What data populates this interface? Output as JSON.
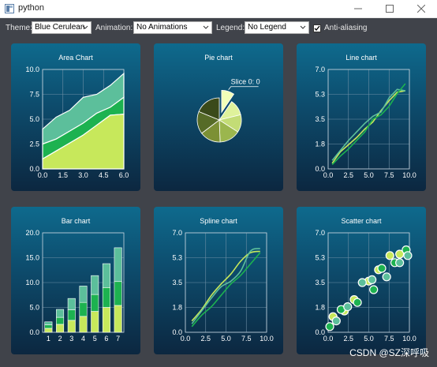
{
  "window": {
    "title": "python"
  },
  "toolbar": {
    "theme_label": "Theme:",
    "theme_value": "Blue Cerulean",
    "animation_label": "Animation:",
    "animation_value": "No Animations",
    "legend_label": "Legend:",
    "legend_value": "No Legend",
    "antialiasing_label": "Anti-aliasing",
    "antialiasing_checked": true
  },
  "watermark": "CSDN @SZ深呼吸",
  "colors": {
    "panel_top": "#0e6a8d",
    "panel_bottom": "#0c2740",
    "series": [
      "#c7e85b",
      "#1db250",
      "#5cbf9b",
      "#009fbf",
      "#ee7392",
      "#6db5d6"
    ]
  },
  "chart_data": [
    {
      "type": "area",
      "title": "Area Chart",
      "xlim": [
        0,
        6
      ],
      "ylim": [
        0,
        10
      ],
      "xticks": [
        "0.0",
        "1.5",
        "3.0",
        "4.5",
        "6.0"
      ],
      "yticks": [
        "0.0",
        "2.5",
        "5.0",
        "7.5",
        "10.0"
      ],
      "x": [
        0,
        1,
        2,
        3,
        4,
        5,
        6
      ],
      "layers": [
        {
          "values": [
            1.0,
            1.8,
            2.6,
            3.4,
            4.4,
            5.4,
            5.5
          ]
        },
        {
          "values": [
            2.5,
            3.0,
            3.8,
            4.6,
            5.6,
            6.2,
            7.2
          ]
        },
        {
          "values": [
            4.0,
            5.2,
            5.9,
            7.2,
            7.5,
            8.4,
            9.6
          ]
        }
      ]
    },
    {
      "type": "pie",
      "title": "Pie chart",
      "slice_label": "Slice 0: 0",
      "slices": [
        {
          "value": 0.8,
          "color": "#f1ffb8",
          "exploded": true
        },
        {
          "value": 1.0,
          "color": "#dff29b"
        },
        {
          "value": 1.1,
          "color": "#c3dc76"
        },
        {
          "value": 1.3,
          "color": "#9bb64e"
        },
        {
          "value": 1.3,
          "color": "#7c9035"
        },
        {
          "value": 1.4,
          "color": "#566b27"
        },
        {
          "value": 1.6,
          "color": "#3a4a1a"
        }
      ]
    },
    {
      "type": "line",
      "title": "Line chart",
      "xlim": [
        0,
        10
      ],
      "ylim": [
        0,
        7
      ],
      "xticks": [
        "0.0",
        "2.5",
        "5.0",
        "7.5",
        "10.0"
      ],
      "yticks": [
        "0.0",
        "1.8",
        "3.5",
        "5.3",
        "7.0"
      ],
      "series": [
        {
          "x": [
            0.5,
            1.5,
            2.5,
            3.5,
            4.5,
            5.5,
            6.5,
            7.5,
            8.5,
            9.5
          ],
          "y": [
            0.4,
            1.2,
            1.7,
            2.2,
            2.8,
            3.3,
            4.1,
            4.8,
            5.4,
            5.5
          ],
          "color": "#c7e85b"
        },
        {
          "x": [
            0.5,
            1.5,
            2.5,
            3.5,
            4.5,
            5.5,
            6.5,
            7.5,
            8.5,
            9.5
          ],
          "y": [
            0.6,
            1.3,
            2.0,
            2.6,
            3.2,
            3.7,
            4.0,
            5.0,
            5.6,
            5.5
          ],
          "color": "#5cbf9b"
        },
        {
          "x": [
            0.5,
            1.5,
            2.5,
            3.5,
            4.5,
            5.5,
            6.5,
            7.5,
            8.5,
            9.5
          ],
          "y": [
            0.3,
            0.9,
            1.4,
            2.0,
            2.6,
            3.5,
            3.8,
            4.4,
            5.3,
            6.0
          ],
          "color": "#1db250"
        }
      ]
    },
    {
      "type": "bar",
      "title": "Bar chart",
      "ylim": [
        0,
        20
      ],
      "yticks": [
        "0.0",
        "5.0",
        "10.0",
        "15.0",
        "20.0"
      ],
      "categories": [
        "1",
        "2",
        "3",
        "4",
        "5",
        "6",
        "7"
      ],
      "stacked": true,
      "series": [
        {
          "values": [
            0.8,
            1.6,
            2.4,
            3.2,
            4.2,
            5.0,
            5.4
          ],
          "color": "#c7e85b"
        },
        {
          "values": [
            0.7,
            1.4,
            2.1,
            2.8,
            3.4,
            4.0,
            4.8
          ],
          "color": "#1db250"
        },
        {
          "values": [
            0.6,
            1.6,
            2.3,
            3.3,
            3.8,
            4.8,
            6.8
          ],
          "color": "#5cbf9b"
        }
      ]
    },
    {
      "type": "line",
      "title": "Spline chart",
      "xlim": [
        0,
        10
      ],
      "ylim": [
        0,
        7
      ],
      "xticks": [
        "0.0",
        "2.5",
        "5.0",
        "7.5",
        "10.0"
      ],
      "yticks": [
        "0.0",
        "1.8",
        "3.5",
        "5.3",
        "7.0"
      ],
      "smooth": true,
      "series": [
        {
          "x": [
            0.8,
            2.0,
            3.2,
            4.4,
            5.6,
            6.8,
            8.0,
            9.2
          ],
          "y": [
            0.8,
            1.6,
            2.6,
            3.4,
            4.1,
            5.0,
            5.6,
            5.7
          ],
          "color": "#c7e85b"
        },
        {
          "x": [
            0.8,
            2.0,
            3.2,
            4.4,
            5.6,
            6.8,
            8.0,
            9.2
          ],
          "y": [
            0.6,
            1.5,
            2.4,
            3.2,
            3.6,
            4.3,
            5.7,
            5.9
          ],
          "color": "#5cbf9b"
        },
        {
          "x": [
            0.8,
            2.0,
            3.2,
            4.4,
            5.6,
            6.8,
            8.0,
            9.2
          ],
          "y": [
            0.4,
            1.2,
            1.8,
            2.6,
            3.4,
            4.0,
            4.8,
            5.6
          ],
          "color": "#1db250"
        }
      ]
    },
    {
      "type": "scatter",
      "title": "Scatter chart",
      "xlim": [
        0,
        10
      ],
      "ylim": [
        0,
        7
      ],
      "xticks": [
        "0.0",
        "2.5",
        "5.0",
        "7.5",
        "10.0"
      ],
      "yticks": [
        "0.0",
        "1.8",
        "3.5",
        "5.3",
        "7.0"
      ],
      "series": [
        {
          "x": [
            0.6,
            2.0,
            3.2,
            5.0,
            6.2,
            7.6,
            8.8
          ],
          "y": [
            1.1,
            1.5,
            2.3,
            3.6,
            4.4,
            5.4,
            5.5
          ],
          "color": "#c7e85b"
        },
        {
          "x": [
            0.2,
            1.6,
            3.6,
            5.6,
            6.6,
            8.2,
            9.6
          ],
          "y": [
            0.4,
            1.6,
            2.1,
            3.0,
            4.5,
            4.9,
            5.8
          ],
          "color": "#1db250"
        },
        {
          "x": [
            1.0,
            2.4,
            4.2,
            5.4,
            7.2,
            8.8,
            9.8
          ],
          "y": [
            0.8,
            1.8,
            3.5,
            3.7,
            3.9,
            4.9,
            5.4
          ],
          "color": "#5cbf9b"
        }
      ]
    }
  ]
}
